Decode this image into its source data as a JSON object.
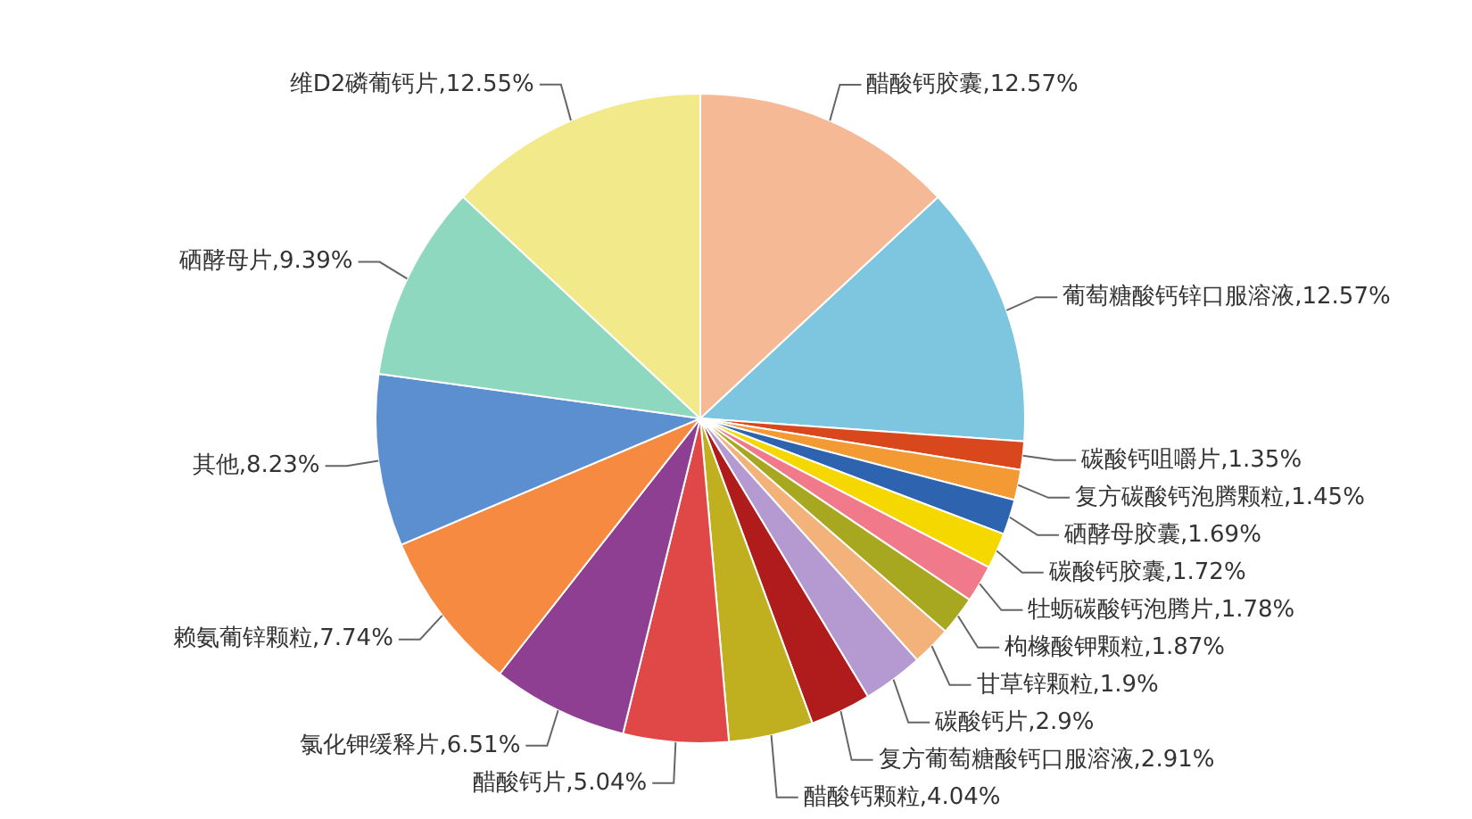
{
  "chart_data": {
    "type": "pie",
    "categories": [
      "醋酸钙胶囊",
      "葡萄糖酸钙锌口服溶液",
      "碳酸钙咀嚼片",
      "复方碳酸钙泡腾颗粒",
      "硒酵母胶囊",
      "碳酸钙胶囊",
      "牡蛎碳酸钙泡腾片",
      "枸橼酸钾颗粒",
      "甘草锌颗粒",
      "碳酸钙片",
      "复方葡萄糖酸钙口服溶液",
      "醋酸钙颗粒",
      "醋酸钙片",
      "氯化钾缓释片",
      "赖氨葡锌颗粒",
      "其他",
      "硒酵母片",
      "维D2磷葡钙片"
    ],
    "values": [
      12.57,
      12.57,
      1.35,
      1.45,
      1.69,
      1.72,
      1.78,
      1.87,
      1.9,
      2.9,
      2.91,
      4.04,
      5.04,
      6.51,
      7.74,
      8.23,
      9.39,
      12.55
    ],
    "value_labels": [
      "12.57%",
      "12.57%",
      "1.35%",
      "1.45%",
      "1.69%",
      "1.72%",
      "1.78%",
      "1.87%",
      "1.9%",
      "2.9%",
      "2.91%",
      "4.04%",
      "5.04%",
      "6.51%",
      "7.74%",
      "8.23%",
      "9.39%",
      "12.55%"
    ],
    "colors": [
      "#f5b996",
      "#7ec6df",
      "#d9481c",
      "#f39a34",
      "#2e63b0",
      "#f5d800",
      "#f07a8a",
      "#a8a820",
      "#f3b27a",
      "#b49ad0",
      "#b01c1c",
      "#c0b020",
      "#e04848",
      "#8e3f92",
      "#f58a40",
      "#5b8fd0",
      "#8ed8c0",
      "#f2e98a"
    ],
    "legend": false
  }
}
